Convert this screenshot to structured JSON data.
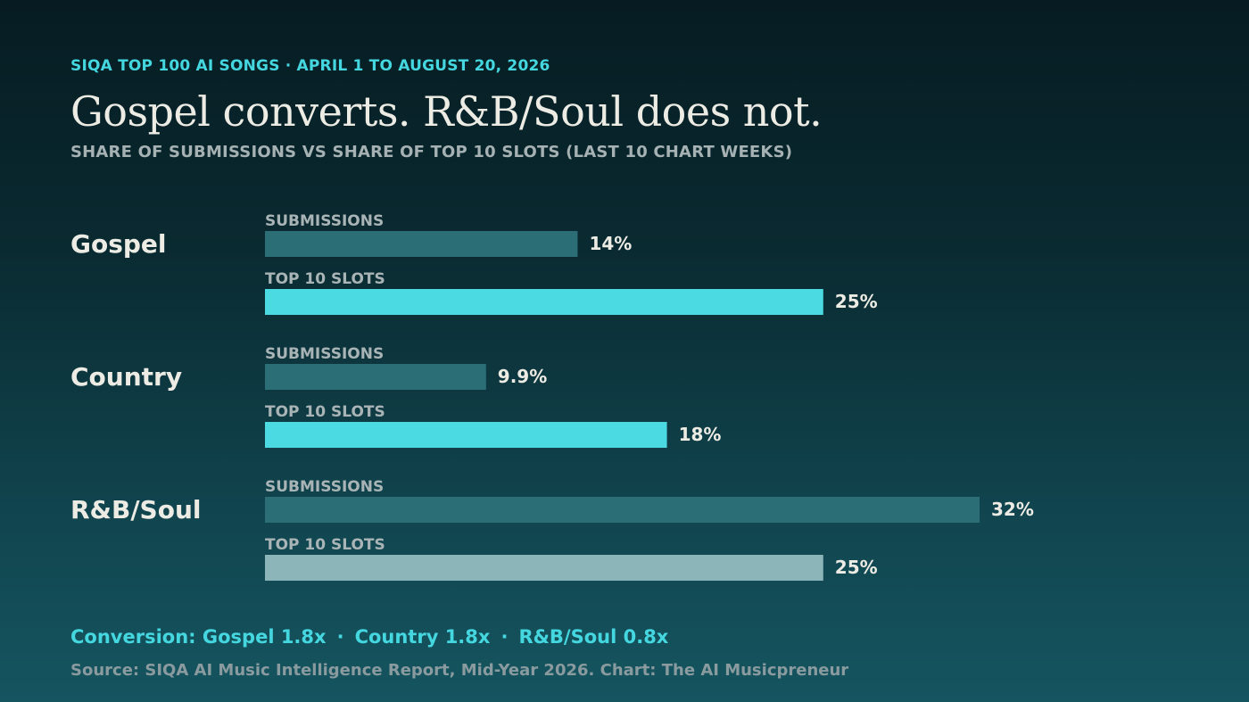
{
  "eyebrow": "SIQA TOP 100 AI SONGS · APRIL 1 TO AUGUST 20, 2026",
  "title": "Gospel converts. R&B/Soul does not.",
  "subtitle": "SHARE OF SUBMISSIONS VS SHARE OF TOP 10 SLOTS (LAST 10 CHART WEEKS)",
  "chart_data": {
    "type": "bar",
    "orientation": "horizontal",
    "categories": [
      "Gospel",
      "Country",
      "R&B/Soul"
    ],
    "series": [
      {
        "name": "SUBMISSIONS",
        "values": [
          14,
          9.9,
          32
        ],
        "labels": [
          "14%",
          "9.9%",
          "32%"
        ]
      },
      {
        "name": "TOP 10 SLOTS",
        "values": [
          25,
          18,
          25
        ],
        "labels": [
          "25%",
          "18%",
          "25%"
        ]
      }
    ],
    "unit": "%",
    "xlim": [
      0,
      32
    ],
    "grid": false,
    "colors": {
      "submissions": "#2b6e76",
      "top10": "#4cdae2",
      "top10_muted": "#8bb5b9",
      "label": "#a9b4b6",
      "value": "#ecebe4",
      "category": "#ecebe4"
    },
    "muted_top10_category": "R&B/Soul"
  },
  "conversion": {
    "prefix": "Conversion:",
    "items": [
      "Gospel 1.8x",
      "Country 1.8x",
      "R&B/Soul 0.8x"
    ]
  },
  "source": "Source: SIQA AI Music Intelligence Report, Mid-Year 2026. Chart: The AI Musicpreneur"
}
